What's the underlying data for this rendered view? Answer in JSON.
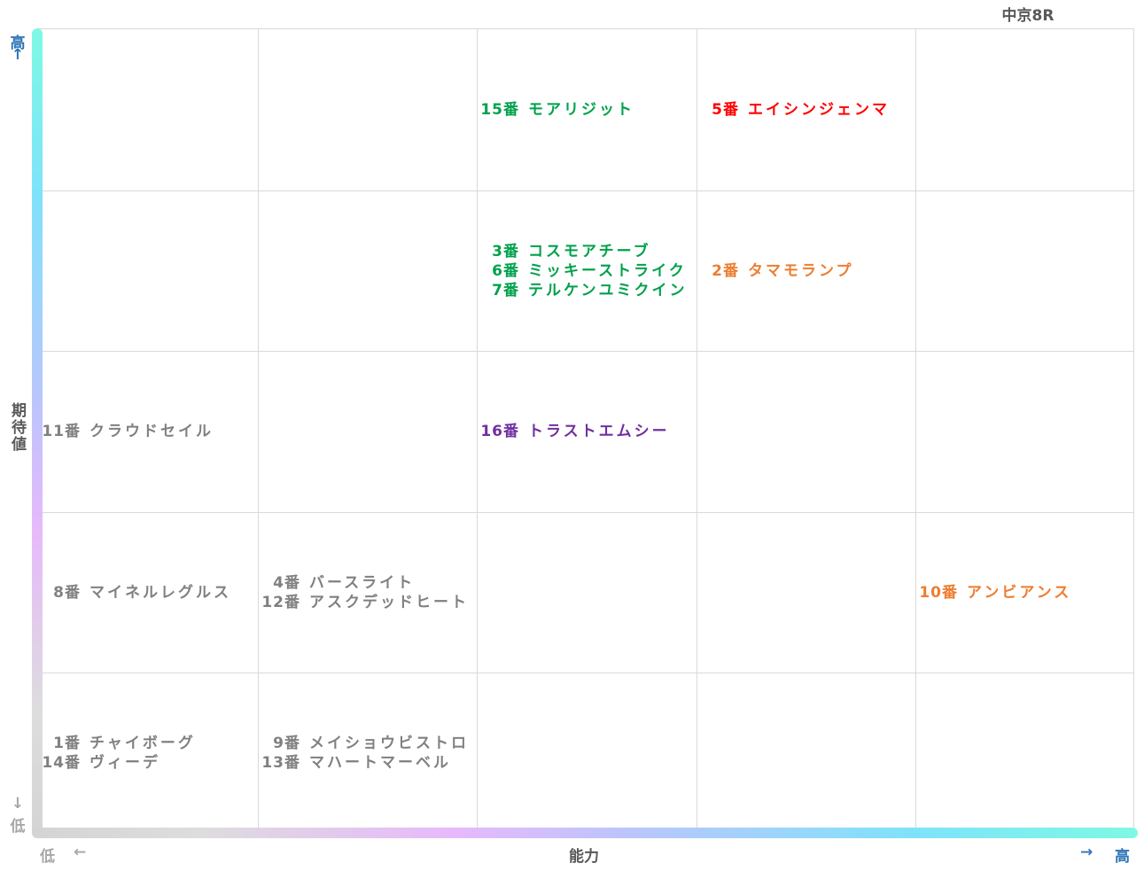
{
  "race": "中京8R",
  "axes": {
    "y_name": "期待値",
    "x_name": "能力",
    "high_label": "高",
    "low_label": "低",
    "arrow_up": "↑",
    "arrow_down": "↓",
    "arrow_left": "←",
    "arrow_right": "→"
  },
  "colors": {
    "green": "#00a14b",
    "red": "#ff0000",
    "orange": "#ed7d31",
    "purple": "#7030a0",
    "gray": "#808080"
  },
  "chart_data": {
    "type": "table",
    "columns": 5,
    "rows": 5,
    "xlabel": "能力",
    "ylabel": "期待値",
    "cells": [
      {
        "col": 3,
        "row": 1,
        "color": "green",
        "entries": [
          {
            "num": "15番",
            "name": "モアリジット"
          }
        ]
      },
      {
        "col": 4,
        "row": 1,
        "color": "red",
        "entries": [
          {
            "num": "5番",
            "name": "エイシンジェンマ"
          }
        ]
      },
      {
        "col": 3,
        "row": 2,
        "color": "green",
        "entries": [
          {
            "num": "3番",
            "name": "コスモアチーブ"
          },
          {
            "num": "6番",
            "name": "ミッキーストライク"
          },
          {
            "num": "7番",
            "name": "テルケンユミクイン"
          }
        ]
      },
      {
        "col": 4,
        "row": 2,
        "color": "orange",
        "entries": [
          {
            "num": "2番",
            "name": "タマモランプ"
          }
        ]
      },
      {
        "col": 1,
        "row": 3,
        "color": "gray",
        "entries": [
          {
            "num": "11番",
            "name": "クラウドセイル"
          }
        ]
      },
      {
        "col": 3,
        "row": 3,
        "color": "purple",
        "entries": [
          {
            "num": "16番",
            "name": "トラストエムシー"
          }
        ]
      },
      {
        "col": 1,
        "row": 4,
        "color": "gray",
        "entries": [
          {
            "num": "8番",
            "name": "マイネルレグルス"
          }
        ]
      },
      {
        "col": 2,
        "row": 4,
        "color": "gray",
        "entries": [
          {
            "num": "4番",
            "name": "バースライト"
          },
          {
            "num": "12番",
            "name": "アスクデッドヒート"
          }
        ]
      },
      {
        "col": 5,
        "row": 4,
        "color": "orange",
        "entries": [
          {
            "num": "10番",
            "name": "アンビアンス"
          }
        ]
      },
      {
        "col": 1,
        "row": 5,
        "color": "gray",
        "entries": [
          {
            "num": "1番",
            "name": "チャイボーグ"
          },
          {
            "num": "14番",
            "name": "ヴィーデ"
          }
        ]
      },
      {
        "col": 2,
        "row": 5,
        "color": "gray",
        "entries": [
          {
            "num": "9番",
            "name": "メイショウビストロ"
          },
          {
            "num": "13番",
            "name": "マハートマーベル"
          }
        ]
      }
    ]
  }
}
